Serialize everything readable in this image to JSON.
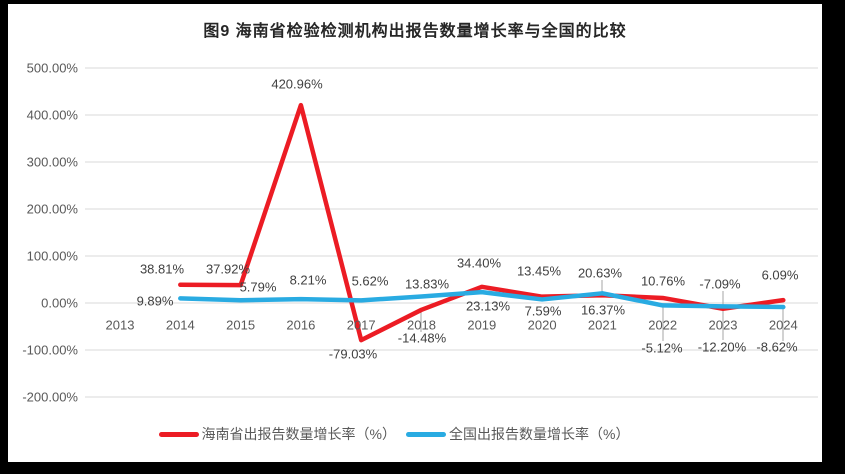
{
  "title": "图9 海南省检验检测机构出报告数量增长率与全国的比较",
  "colors": {
    "hainan_red": "#EC1C24",
    "national_blue": "#29ABE2",
    "gridline": "#D9D9D9",
    "leader_line": "#A6A6A6",
    "axis_text": "#595959",
    "data_label_text": "#404040",
    "page_background": "#FFFFFF",
    "frame_background": "#000000"
  },
  "chart_data": {
    "type": "line",
    "title": "图9 海南省检验检测机构出报告数量增长率与全国的比较",
    "categories": [
      "2013",
      "2014",
      "2015",
      "2016",
      "2017",
      "2018",
      "2019",
      "2020",
      "2021",
      "2022",
      "2023",
      "2024"
    ],
    "y_axis": {
      "unit": "%",
      "min": -200,
      "max": 500,
      "tick_values": [
        500,
        400,
        300,
        200,
        100,
        0,
        -100,
        -200
      ],
      "tick_labels": [
        "500.00%",
        "400.00%",
        "300.00%",
        "200.00%",
        "100.00%",
        "0.00%",
        "-100.00%",
        "-200.00%"
      ]
    },
    "grid": "horizontal",
    "legend_position": "bottom",
    "series": [
      {
        "name": "海南省出报告数量增长率（%）",
        "color": "#EC1C24",
        "start_index": 1,
        "values": [
          38.81,
          37.92,
          420.96,
          -79.03,
          -14.48,
          34.4,
          13.45,
          16.37,
          10.76,
          -12.2,
          6.09
        ],
        "labels": [
          "38.81%",
          "37.92%",
          "420.96%",
          "-79.03%",
          "-14.48%",
          "34.40%",
          "13.45%",
          "16.37%",
          "10.76%",
          "-12.20%",
          "6.09%"
        ]
      },
      {
        "name": "全国出报告数量增长率（%）",
        "color": "#29ABE2",
        "start_index": 1,
        "values": [
          9.89,
          5.79,
          8.21,
          5.62,
          13.83,
          23.13,
          7.59,
          20.63,
          -5.12,
          -7.09,
          -8.62
        ],
        "labels": [
          "9.89%",
          "5.79%",
          "8.21%",
          "5.62%",
          "13.83%",
          "23.13%",
          "7.59%",
          "20.63%",
          "-5.12%",
          "-7.09%",
          "-8.62%"
        ]
      }
    ]
  },
  "legend": {
    "items": [
      {
        "label": "海南省出报告数量增长率（%）"
      },
      {
        "label": "全国出报告数量增长率（%）"
      }
    ]
  }
}
